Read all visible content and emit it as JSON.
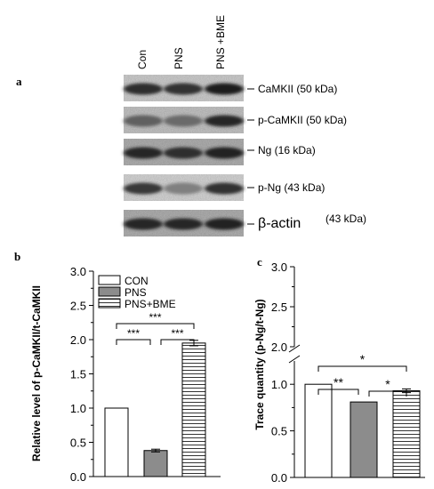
{
  "panels": {
    "a_label": "a",
    "b_label": "b",
    "c_label": "c"
  },
  "blot": {
    "lanes": [
      "Con",
      "PNS",
      "PNS +BME"
    ],
    "rows": [
      {
        "label": "CaMKII (50 kDa)",
        "intensities": [
          0.82,
          0.8,
          0.88
        ],
        "bg": 0.18
      },
      {
        "label": "p-CaMKII (50 kDa)",
        "intensities": [
          0.62,
          0.58,
          0.85
        ],
        "bg": 0.22
      },
      {
        "label": "Ng (16 kDa)",
        "intensities": [
          0.85,
          0.82,
          0.86
        ],
        "bg": 0.3
      },
      {
        "label": "p-Ng (43 kDa)",
        "intensities": [
          0.78,
          0.5,
          0.8
        ],
        "bg": 0.15
      },
      {
        "label": "β-actin",
        "sublabel": "(43 kDa)",
        "intensities": [
          0.85,
          0.85,
          0.86
        ],
        "bg": 0.3
      }
    ]
  },
  "chart_data": [
    {
      "type": "bar",
      "panel": "b",
      "ylabel": "Relative level of p-CaMKII/t-CaMKII",
      "categories": [
        "CON",
        "PNS",
        "PNS+BME"
      ],
      "values": [
        1.0,
        0.38,
        1.95
      ],
      "errors": [
        0.0,
        0.02,
        0.04
      ],
      "ylim": [
        0,
        3.0
      ],
      "yticks": [
        "0.0",
        "0.5",
        "1.0",
        "1.5",
        "2.0",
        "2.5",
        "3.0"
      ],
      "legend": [
        "CON",
        "PNS",
        "PNS+BME"
      ],
      "legend_position": "top-right",
      "fills": [
        "white",
        "gray",
        "stripes"
      ],
      "significance": [
        {
          "pair": [
            0,
            1
          ],
          "label": "***"
        },
        {
          "pair": [
            1,
            2
          ],
          "label": "***"
        },
        {
          "pair": [
            0,
            2
          ],
          "label": "***"
        }
      ]
    },
    {
      "type": "bar",
      "panel": "c",
      "ylabel": "Trace quantity (p-Ng/t-Ng)",
      "categories": [
        "CON",
        "PNS",
        "PNS+BME"
      ],
      "values": [
        1.0,
        0.81,
        0.93
      ],
      "errors": [
        0.0,
        0.0,
        0.02
      ],
      "ylim": [
        0,
        3.0
      ],
      "axis_break": [
        1.25,
        2.0
      ],
      "yticks": [
        "0.0",
        "0.5",
        "1.0",
        "2.0",
        "2.5",
        "3.0"
      ],
      "fills": [
        "white",
        "gray",
        "stripes"
      ],
      "significance": [
        {
          "pair": [
            0,
            1
          ],
          "label": "**"
        },
        {
          "pair": [
            1,
            2
          ],
          "label": "*"
        },
        {
          "pair": [
            0,
            2
          ],
          "label": "*"
        }
      ]
    }
  ],
  "colors": {
    "gray_bar": "#8c8c8c",
    "stroke": "#000000"
  }
}
